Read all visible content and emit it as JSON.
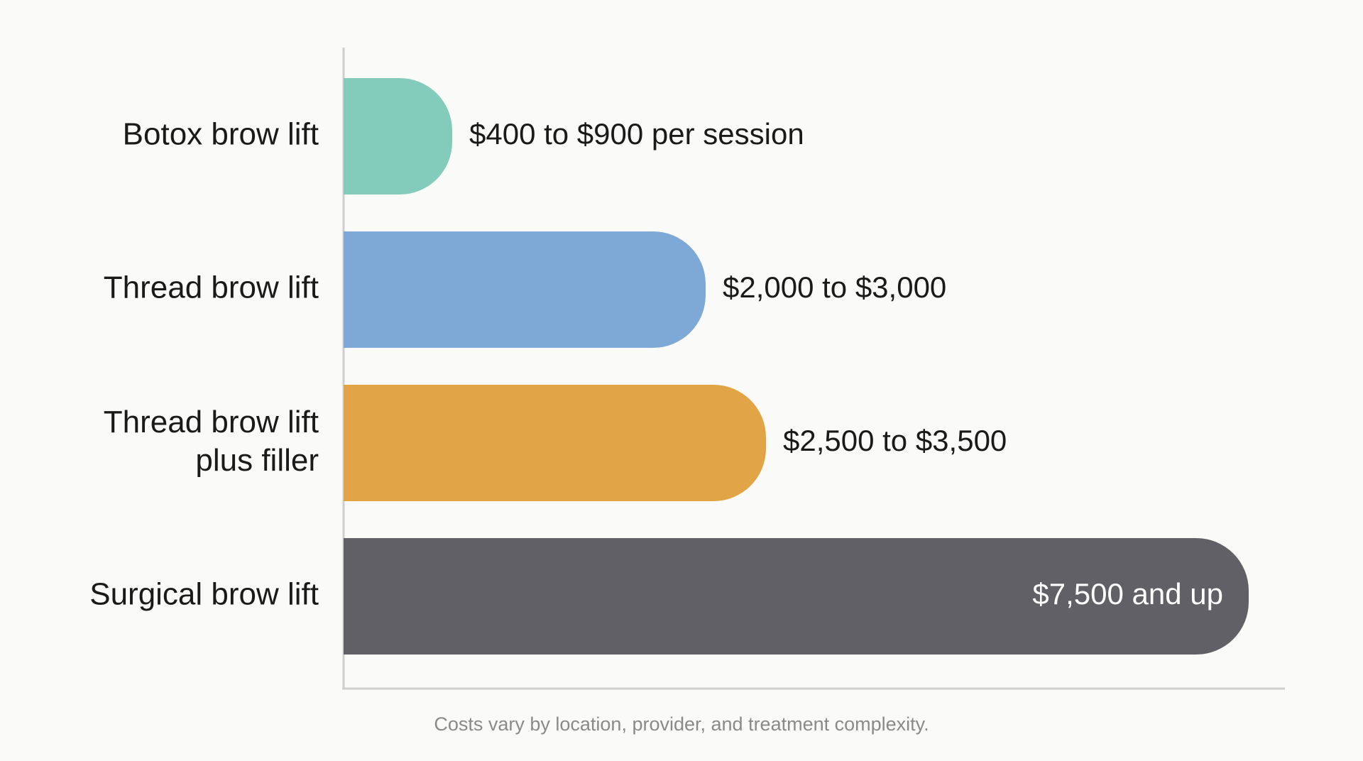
{
  "chart_data": {
    "type": "bar",
    "orientation": "horizontal",
    "categories": [
      "Botox brow lift",
      "Thread brow lift",
      "Thread brow lift\nplus filler",
      "Surgical brow lift"
    ],
    "values": [
      900,
      3000,
      3500,
      7500
    ],
    "value_labels": [
      "$400 to $900 per session",
      "$2,000 to $3,000",
      "$2,500 to $3,500",
      "$7,500 and up"
    ],
    "colors": [
      "#83cbbb",
      "#7ea9d6",
      "#e1a548",
      "#606066"
    ],
    "xlim": [
      0,
      7800
    ],
    "note": "Costs vary by location, provider, and treatment complexity."
  }
}
